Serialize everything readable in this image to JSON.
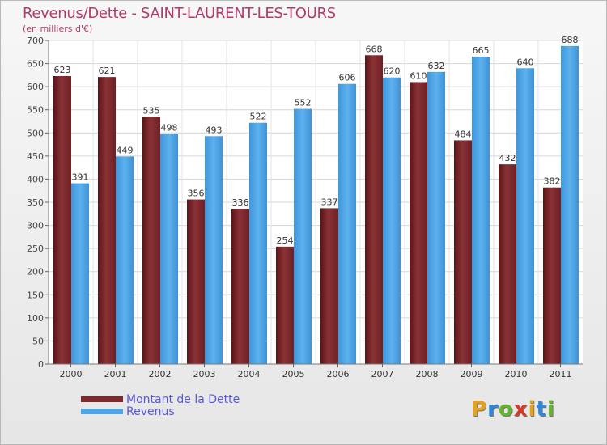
{
  "header": {
    "title": "Revenus/Dette - SAINT-LAURENT-LES-TOURS",
    "subtitle": "(en milliers d'€)"
  },
  "colors": {
    "debt": "#7e2a2d",
    "revenue": "#4ea5e6",
    "title": "#b33a6b",
    "legend_text": "#5858d8"
  },
  "chart_data": {
    "type": "bar",
    "categories": [
      "2000",
      "2001",
      "2002",
      "2003",
      "2004",
      "2005",
      "2006",
      "2007",
      "2008",
      "2009",
      "2010",
      "2011"
    ],
    "series": [
      {
        "name": "Montant de la Dette",
        "values": [
          623,
          621,
          535,
          356,
          336,
          254,
          337,
          668,
          610,
          484,
          432,
          382
        ]
      },
      {
        "name": "Revenus",
        "values": [
          391,
          449,
          498,
          493,
          522,
          552,
          606,
          620,
          632,
          665,
          640,
          688
        ]
      }
    ],
    "ylim": [
      0,
      700
    ],
    "yticks": [
      0,
      50,
      100,
      150,
      200,
      250,
      300,
      350,
      400,
      450,
      500,
      550,
      600,
      650,
      700
    ],
    "grid": true,
    "legend": "bottom-left"
  },
  "logo": {
    "letters": [
      "P",
      "r",
      "o",
      "x",
      "i",
      "t",
      "i"
    ],
    "colors": [
      "#e6a21c",
      "#2f86d6",
      "#63b52c",
      "#d43b2a",
      "#e6a21c",
      "#2f86d6",
      "#63b52c"
    ]
  }
}
